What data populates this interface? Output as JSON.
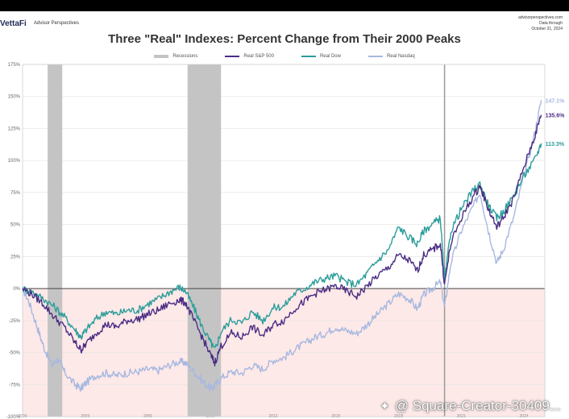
{
  "header": {
    "brand": "VettaFi",
    "brand_sub": "Advisor Perspectives",
    "meta_lines": [
      "advisorperspectives.com",
      "Data through",
      "October 31, 2024"
    ]
  },
  "chart_data": {
    "type": "line",
    "title": "Three \"Real\" Indexes: Percent Change from Their 2000 Peaks",
    "xlabel": "",
    "ylabel": "",
    "ylim": [
      -100,
      175
    ],
    "xlim": [
      2000,
      2025
    ],
    "yticks": [
      -100,
      -75,
      -50,
      -25,
      0,
      25,
      50,
      75,
      100,
      125,
      150,
      175
    ],
    "ytick_labels": [
      "-100%",
      "-75%",
      "-50%",
      "-25%",
      "0%",
      "25%",
      "50%",
      "75%",
      "100%",
      "125%",
      "150%",
      "175%"
    ],
    "xticks": [
      2000,
      2003,
      2006,
      2009,
      2012,
      2015,
      2018,
      2021,
      2024
    ],
    "xtick_labels": [
      "2000",
      "2003",
      "2006",
      "2009",
      "2012",
      "2015",
      "2018",
      "2021",
      "2024"
    ],
    "recessions": [
      [
        2001.2,
        2001.9
      ],
      [
        2007.9,
        2009.5
      ]
    ],
    "vertical_marker": 2020.2,
    "legend": [
      {
        "name": "Recessions",
        "color": "#c4c4c4"
      },
      {
        "name": "Real S&P 500",
        "color": "#4b2d84"
      },
      {
        "name": "Real Dow",
        "color": "#2a9d9a"
      },
      {
        "name": "Real Nasdaq",
        "color": "#a7b8e0"
      }
    ],
    "series": [
      {
        "name": "Real S&P 500",
        "color": "#4b2d84",
        "end_label": "135.6%",
        "points": [
          [
            2000,
            0
          ],
          [
            2000.5,
            -5
          ],
          [
            2001,
            -12
          ],
          [
            2001.5,
            -22
          ],
          [
            2002,
            -30
          ],
          [
            2002.5,
            -42
          ],
          [
            2002.8,
            -48
          ],
          [
            2003,
            -44
          ],
          [
            2003.5,
            -35
          ],
          [
            2004,
            -28
          ],
          [
            2004.5,
            -30
          ],
          [
            2005,
            -25
          ],
          [
            2005.5,
            -24
          ],
          [
            2006,
            -20
          ],
          [
            2006.5,
            -17
          ],
          [
            2007,
            -12
          ],
          [
            2007.5,
            -9
          ],
          [
            2007.8,
            -11
          ],
          [
            2008.2,
            -25
          ],
          [
            2008.6,
            -38
          ],
          [
            2009.0,
            -52
          ],
          [
            2009.2,
            -58
          ],
          [
            2009.5,
            -45
          ],
          [
            2010,
            -35
          ],
          [
            2010.5,
            -38
          ],
          [
            2011,
            -30
          ],
          [
            2011.5,
            -37
          ],
          [
            2012,
            -28
          ],
          [
            2012.5,
            -25
          ],
          [
            2013,
            -16
          ],
          [
            2013.5,
            -10
          ],
          [
            2014,
            -4
          ],
          [
            2014.5,
            -1
          ],
          [
            2015,
            2
          ],
          [
            2015.5,
            -2
          ],
          [
            2016,
            -6
          ],
          [
            2016.5,
            2
          ],
          [
            2017,
            10
          ],
          [
            2017.5,
            16
          ],
          [
            2018,
            26
          ],
          [
            2018.5,
            22
          ],
          [
            2018.9,
            14
          ],
          [
            2019.2,
            26
          ],
          [
            2019.6,
            30
          ],
          [
            2020,
            35
          ],
          [
            2020.2,
            3
          ],
          [
            2020.5,
            35
          ],
          [
            2021,
            55
          ],
          [
            2021.5,
            70
          ],
          [
            2021.9,
            80
          ],
          [
            2022.3,
            62
          ],
          [
            2022.7,
            48
          ],
          [
            2023,
            55
          ],
          [
            2023.5,
            70
          ],
          [
            2024,
            95
          ],
          [
            2024.5,
            118
          ],
          [
            2024.83,
            135.6
          ]
        ]
      },
      {
        "name": "Real Dow",
        "color": "#2a9d9a",
        "end_label": "113.3%",
        "points": [
          [
            2000,
            0
          ],
          [
            2000.5,
            -3
          ],
          [
            2001,
            -8
          ],
          [
            2001.5,
            -14
          ],
          [
            2002,
            -22
          ],
          [
            2002.5,
            -32
          ],
          [
            2002.8,
            -38
          ],
          [
            2003,
            -33
          ],
          [
            2003.5,
            -24
          ],
          [
            2004,
            -18
          ],
          [
            2004.5,
            -20
          ],
          [
            2005,
            -17
          ],
          [
            2005.5,
            -17
          ],
          [
            2006,
            -12
          ],
          [
            2006.5,
            -8
          ],
          [
            2007,
            -3
          ],
          [
            2007.5,
            1
          ],
          [
            2007.8,
            -2
          ],
          [
            2008.2,
            -15
          ],
          [
            2008.6,
            -30
          ],
          [
            2009.0,
            -42
          ],
          [
            2009.2,
            -48
          ],
          [
            2009.5,
            -34
          ],
          [
            2010,
            -24
          ],
          [
            2010.5,
            -27
          ],
          [
            2011,
            -18
          ],
          [
            2011.5,
            -25
          ],
          [
            2012,
            -15
          ],
          [
            2012.5,
            -14
          ],
          [
            2013,
            -4
          ],
          [
            2013.5,
            0
          ],
          [
            2014,
            5
          ],
          [
            2014.5,
            8
          ],
          [
            2015,
            10
          ],
          [
            2015.5,
            5
          ],
          [
            2016,
            3
          ],
          [
            2016.5,
            12
          ],
          [
            2017,
            22
          ],
          [
            2017.5,
            30
          ],
          [
            2018,
            48
          ],
          [
            2018.5,
            40
          ],
          [
            2018.9,
            35
          ],
          [
            2019.2,
            45
          ],
          [
            2019.6,
            50
          ],
          [
            2020,
            55
          ],
          [
            2020.2,
            5
          ],
          [
            2020.5,
            45
          ],
          [
            2021,
            62
          ],
          [
            2021.5,
            75
          ],
          [
            2021.9,
            82
          ],
          [
            2022.3,
            65
          ],
          [
            2022.7,
            55
          ],
          [
            2023,
            60
          ],
          [
            2023.5,
            72
          ],
          [
            2024,
            88
          ],
          [
            2024.5,
            100
          ],
          [
            2024.83,
            113.3
          ]
        ]
      },
      {
        "name": "Real Nasdaq",
        "color": "#a7b8e0",
        "end_label": "147.1%",
        "points": [
          [
            2000,
            0
          ],
          [
            2000.3,
            -10
          ],
          [
            2000.7,
            -30
          ],
          [
            2001,
            -45
          ],
          [
            2001.4,
            -60
          ],
          [
            2001.7,
            -55
          ],
          [
            2002,
            -65
          ],
          [
            2002.5,
            -75
          ],
          [
            2002.8,
            -78
          ],
          [
            2003,
            -74
          ],
          [
            2003.5,
            -68
          ],
          [
            2004,
            -66
          ],
          [
            2004.5,
            -68
          ],
          [
            2005,
            -66
          ],
          [
            2005.5,
            -65
          ],
          [
            2006,
            -63
          ],
          [
            2006.5,
            -64
          ],
          [
            2007,
            -60
          ],
          [
            2007.5,
            -57
          ],
          [
            2007.8,
            -58
          ],
          [
            2008.2,
            -65
          ],
          [
            2008.6,
            -72
          ],
          [
            2009.0,
            -78
          ],
          [
            2009.2,
            -76
          ],
          [
            2009.5,
            -70
          ],
          [
            2010,
            -65
          ],
          [
            2010.5,
            -66
          ],
          [
            2011,
            -60
          ],
          [
            2011.5,
            -63
          ],
          [
            2012,
            -56
          ],
          [
            2012.5,
            -54
          ],
          [
            2013,
            -48
          ],
          [
            2013.5,
            -43
          ],
          [
            2014,
            -38
          ],
          [
            2014.5,
            -35
          ],
          [
            2015,
            -30
          ],
          [
            2015.5,
            -33
          ],
          [
            2016,
            -35
          ],
          [
            2016.5,
            -28
          ],
          [
            2017,
            -20
          ],
          [
            2017.5,
            -12
          ],
          [
            2018,
            -4
          ],
          [
            2018.5,
            -8
          ],
          [
            2018.9,
            -16
          ],
          [
            2019.2,
            -5
          ],
          [
            2019.6,
            0
          ],
          [
            2020,
            5
          ],
          [
            2020.2,
            -15
          ],
          [
            2020.5,
            20
          ],
          [
            2021,
            45
          ],
          [
            2021.5,
            62
          ],
          [
            2021.9,
            75
          ],
          [
            2022.3,
            45
          ],
          [
            2022.7,
            20
          ],
          [
            2023,
            30
          ],
          [
            2023.5,
            55
          ],
          [
            2024,
            88
          ],
          [
            2024.5,
            120
          ],
          [
            2024.83,
            147.1
          ]
        ]
      }
    ]
  },
  "watermark": {
    "text": "@ Square-Creator-30409...",
    "icon": "square-logo-icon"
  }
}
